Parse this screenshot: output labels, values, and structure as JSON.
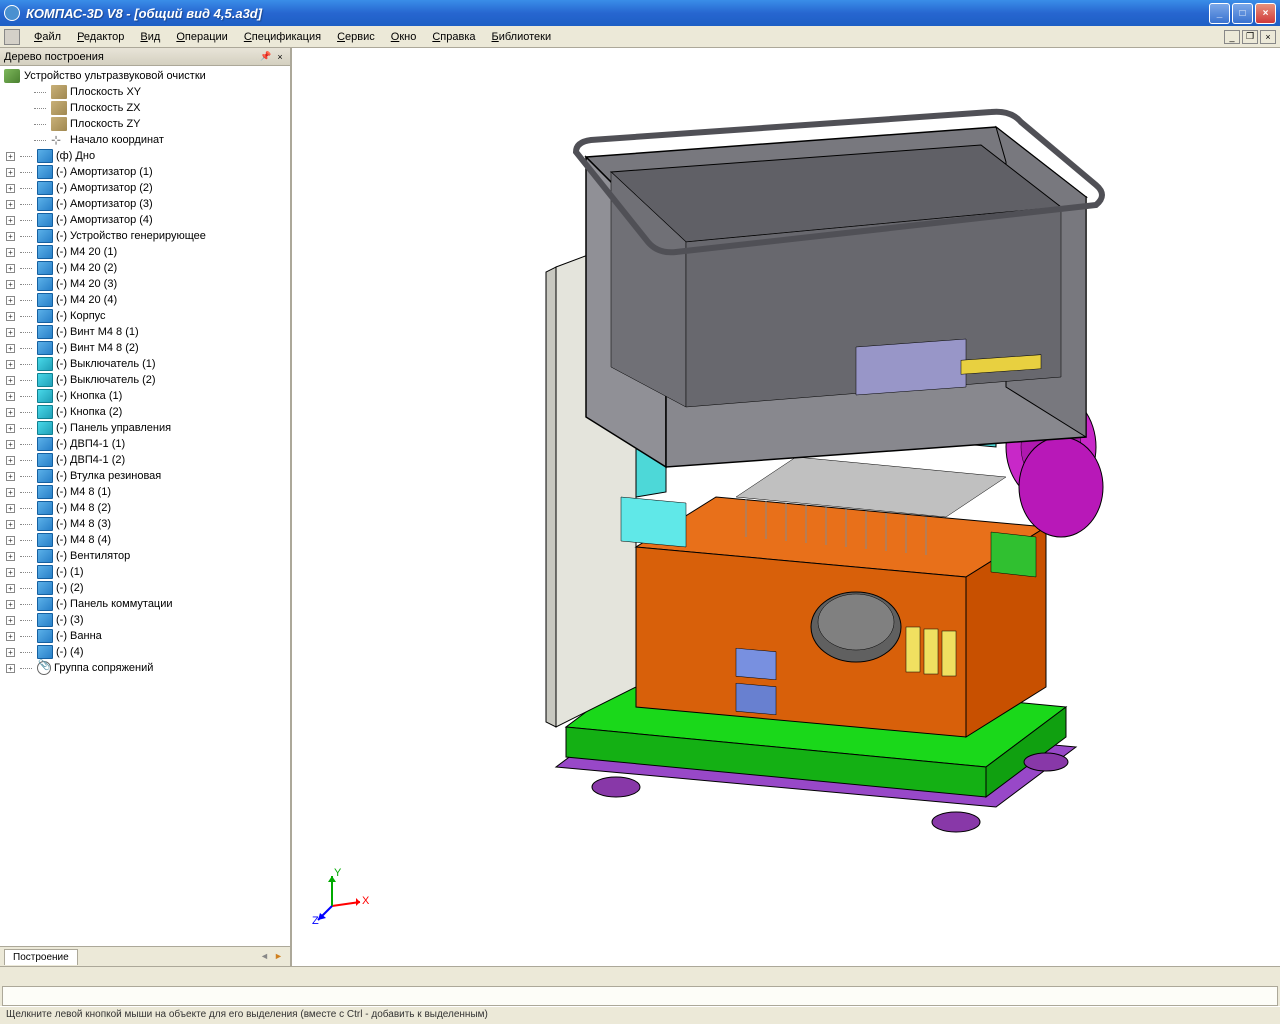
{
  "title": "КОМПАС-3D V8 - [общий вид 4,5.a3d]",
  "menu": [
    "Файл",
    "Редактор",
    "Вид",
    "Операции",
    "Спецификация",
    "Сервис",
    "Окно",
    "Справка",
    "Библиотеки"
  ],
  "panel": {
    "title": "Дерево построения",
    "footer_tab": "Построение"
  },
  "tree": {
    "root": "Устройство ультразвуковой очистки",
    "planes": [
      "Плоскость XY",
      "Плоскость ZX",
      "Плоскость ZY"
    ],
    "origin": "Начало координат",
    "parts": [
      {
        "label": "(ф) Дно",
        "icon": "part"
      },
      {
        "label": "(-) Амортизатор (1)",
        "icon": "part"
      },
      {
        "label": "(-) Амортизатор (2)",
        "icon": "part"
      },
      {
        "label": "(-) Амортизатор (3)",
        "icon": "part"
      },
      {
        "label": "(-) Амортизатор (4)",
        "icon": "part"
      },
      {
        "label": "(-) Устройство генерирующее",
        "icon": "part"
      },
      {
        "label": "(-) М4 20 (1)",
        "icon": "part"
      },
      {
        "label": "(-) М4 20 (2)",
        "icon": "part"
      },
      {
        "label": "(-) М4 20 (3)",
        "icon": "part"
      },
      {
        "label": "(-) М4 20 (4)",
        "icon": "part"
      },
      {
        "label": "(-) Корпус",
        "icon": "part"
      },
      {
        "label": "(-) Винт М4 8 (1)",
        "icon": "part"
      },
      {
        "label": "(-) Винт М4 8 (2)",
        "icon": "part"
      },
      {
        "label": "(-) Выключатель (1)",
        "icon": "part2"
      },
      {
        "label": "(-) Выключатель (2)",
        "icon": "part2"
      },
      {
        "label": "(-) Кнопка (1)",
        "icon": "part2"
      },
      {
        "label": "(-) Кнопка (2)",
        "icon": "part2"
      },
      {
        "label": "(-) Панель управления",
        "icon": "part2"
      },
      {
        "label": "(-) ДВП4-1 (1)",
        "icon": "part"
      },
      {
        "label": "(-) ДВП4-1 (2)",
        "icon": "part"
      },
      {
        "label": "(-) Втулка резиновая",
        "icon": "part"
      },
      {
        "label": "(-) М4 8 (1)",
        "icon": "part"
      },
      {
        "label": "(-) М4 8 (2)",
        "icon": "part"
      },
      {
        "label": "(-) М4 8 (3)",
        "icon": "part"
      },
      {
        "label": "(-) М4 8 (4)",
        "icon": "part"
      },
      {
        "label": "(-) Вентилятор",
        "icon": "part"
      },
      {
        "label": "(-)  (1)",
        "icon": "part"
      },
      {
        "label": "(-)  (2)",
        "icon": "part"
      },
      {
        "label": "(-) Панель коммутации",
        "icon": "part"
      },
      {
        "label": "(-)  (3)",
        "icon": "part"
      },
      {
        "label": "(-) Ванна",
        "icon": "part"
      },
      {
        "label": "(-)  (4)",
        "icon": "part"
      }
    ],
    "mates": "Группа сопряжений"
  },
  "status": "Щелкните левой кнопкой мыши на объекте для его выделения (вместе с Ctrl - добавить к выделенным)",
  "axis": {
    "x": "X",
    "y": "Y",
    "z": "Z",
    "x_color": "#ff0000",
    "y_color": "#00aa00",
    "z_color": "#0000ff"
  },
  "model_colors": {
    "tank": "#8a8a92",
    "tank_rim": "#6a6a72",
    "panel": "#9896c8",
    "frame_cyan": "#4dd8d8",
    "pcb": "#e8701a",
    "base_green": "#1ad81a",
    "base_purple": "#9848c8",
    "fan_magenta": "#c828c8",
    "cap_blue": "#5870d8",
    "comp_yellow": "#f0e060",
    "comp_green": "#30c030",
    "heatsink": "#b8b8b8",
    "housing": "#d8d8d0",
    "foot": "#8838a8"
  }
}
